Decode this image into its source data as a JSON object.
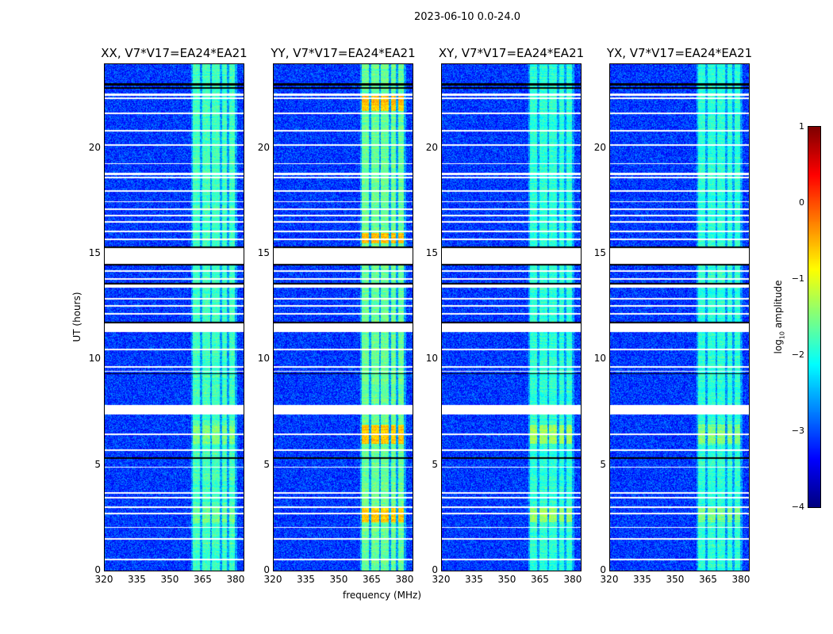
{
  "chart_data": {
    "type": "heatmap",
    "title": "2023-06-10 0.0-24.0",
    "xlabel": "frequency (MHz)",
    "ylabel": "UT (hours)",
    "xlim": [
      320,
      384
    ],
    "ylim": [
      0,
      24
    ],
    "xticks": [
      "320",
      "335",
      "350",
      "365",
      "380"
    ],
    "xtick_values": [
      320,
      335,
      350,
      365,
      380
    ],
    "yticks": [
      "0",
      "5",
      "10",
      "15",
      "20"
    ],
    "ytick_values": [
      0,
      5,
      10,
      15,
      20
    ],
    "panels": [
      {
        "title": "XX, V7*V17=EA24*EA21",
        "band_level": -1.8,
        "hot_times": [
          [
            2.3,
            3.0
          ],
          [
            6.0,
            6.9
          ]
        ],
        "hot_level": -1.5
      },
      {
        "title": "YY, V7*V17=EA24*EA21",
        "band_level": -1.6,
        "hot_times": [
          [
            2.3,
            3.0
          ],
          [
            6.0,
            6.9
          ],
          [
            21.8,
            22.6
          ],
          [
            15.5,
            16.0
          ]
        ],
        "hot_level": -0.6
      },
      {
        "title": "XY, V7*V17=EA24*EA21",
        "band_level": -1.9,
        "hot_times": [
          [
            2.3,
            3.0
          ],
          [
            6.0,
            6.9
          ]
        ],
        "hot_level": -1.4
      },
      {
        "title": "YX, V7*V17=EA24*EA21",
        "band_level": -1.9,
        "hot_times": [
          [
            2.3,
            3.0
          ],
          [
            6.0,
            6.9
          ]
        ],
        "hot_level": -1.5
      }
    ],
    "background_level": -3.1,
    "rfi_subbands_mhz": [
      [
        360.5,
        364
      ],
      [
        365,
        368.5
      ],
      [
        369.5,
        373
      ],
      [
        374,
        376.5
      ],
      [
        377.5,
        380
      ]
    ],
    "flagged_hours": [
      [
        22.5,
        22.6
      ],
      [
        22.35,
        22.42
      ],
      [
        21.65,
        21.72
      ],
      [
        20.82,
        20.9
      ],
      [
        20.15,
        20.22
      ],
      [
        19.25,
        19.32
      ],
      [
        18.75,
        18.85
      ],
      [
        18.6,
        18.68
      ],
      [
        17.95,
        18.02
      ],
      [
        17.45,
        17.52
      ],
      [
        17.1,
        17.17
      ],
      [
        16.8,
        16.87
      ],
      [
        16.5,
        16.57
      ],
      [
        16.05,
        16.12
      ],
      [
        15.65,
        15.72
      ],
      [
        14.55,
        15.3
      ],
      [
        14.15,
        14.22
      ],
      [
        13.8,
        13.87
      ],
      [
        13.4,
        13.55
      ],
      [
        12.85,
        12.92
      ],
      [
        12.5,
        12.57
      ],
      [
        12.15,
        12.22
      ],
      [
        11.3,
        11.7
      ],
      [
        10.45,
        10.52
      ],
      [
        9.6,
        9.68
      ],
      [
        9.42,
        9.48
      ],
      [
        7.4,
        7.85
      ],
      [
        6.42,
        6.48
      ],
      [
        5.67,
        5.73
      ],
      [
        4.87,
        4.93
      ],
      [
        3.64,
        3.7
      ],
      [
        3.42,
        3.48
      ],
      [
        2.97,
        3.03
      ],
      [
        2.67,
        2.73
      ],
      [
        2.02,
        2.08
      ],
      [
        1.47,
        1.55
      ],
      [
        0.49,
        0.55
      ]
    ],
    "black_hours": [
      [
        23.0,
        23.1
      ],
      [
        22.85,
        22.9
      ],
      [
        15.3,
        15.38
      ],
      [
        14.45,
        14.55
      ],
      [
        13.55,
        13.62
      ],
      [
        11.7,
        11.78
      ],
      [
        9.3,
        9.36
      ],
      [
        5.3,
        5.36
      ]
    ],
    "colorbar": {
      "label": "log10 amplitude",
      "label_main": "log",
      "label_sub": "10",
      "label_rest": " amplitude",
      "range": [
        -4,
        1
      ],
      "ticks": [
        "1",
        "0",
        "−1",
        "−2",
        "−3",
        "−4"
      ],
      "tick_values": [
        1,
        0,
        -1,
        -2,
        -3,
        -4
      ],
      "colormap": "jet"
    }
  }
}
